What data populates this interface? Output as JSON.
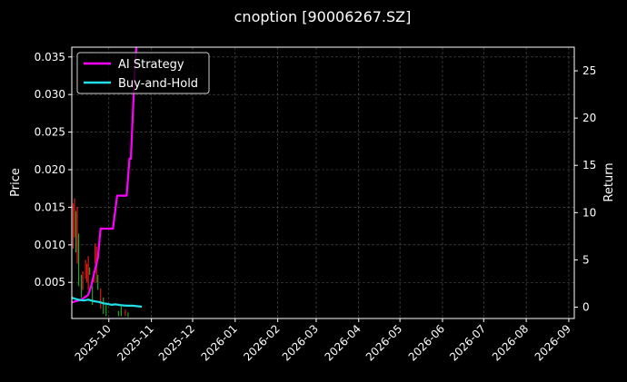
{
  "chart_data": {
    "type": "line",
    "title": "cnoption [90006267.SZ]",
    "ylabel_left": "Price",
    "ylabel_right": "Return",
    "grid": true,
    "legend_position": "top-left",
    "ylim_left": [
      0.0002,
      0.0363
    ],
    "ylim_right": [
      -1.2,
      27.5
    ],
    "xlim": [
      "2025-09-04",
      "2026-09-05"
    ],
    "left_ticks": [
      "0.005",
      "0.010",
      "0.015",
      "0.020",
      "0.025",
      "0.030",
      "0.035"
    ],
    "right_ticks": [
      "0",
      "5",
      "10",
      "15",
      "20",
      "25"
    ],
    "x_ticks": [
      "2025-10",
      "2025-11",
      "2025-12",
      "2026-01",
      "2026-02",
      "2026-03",
      "2026-04",
      "2026-05",
      "2026-06",
      "2026-07",
      "2026-08",
      "2026-09"
    ],
    "series": [
      {
        "name": "AI Strategy",
        "color": "#ff00ff",
        "axis": "right",
        "x": [
          "2025-09-04",
          "2025-09-11",
          "2025-09-16",
          "2025-09-18",
          "2025-09-21",
          "2025-09-23",
          "2025-09-25",
          "2025-09-28",
          "2025-10-04",
          "2025-10-07",
          "2025-10-09",
          "2025-10-14",
          "2025-10-16",
          "2025-10-17",
          "2025-10-20",
          "2025-10-21"
        ],
        "values": [
          0.5,
          0.8,
          1.3,
          2.2,
          4.0,
          5.2,
          8.3,
          8.3,
          8.3,
          11.8,
          11.8,
          11.8,
          15.7,
          15.7,
          25.5,
          27.5
        ]
      },
      {
        "name": "Buy-and-Hold",
        "color": "#22e0e8",
        "axis": "right",
        "x": [
          "2025-09-04",
          "2025-09-07",
          "2025-09-10",
          "2025-09-13",
          "2025-09-16",
          "2025-09-18",
          "2025-09-21",
          "2025-09-24",
          "2025-09-27",
          "2025-09-30",
          "2025-10-03",
          "2025-10-06",
          "2025-10-10",
          "2025-10-14",
          "2025-10-18",
          "2025-10-22",
          "2025-10-25"
        ],
        "values": [
          1.0,
          0.85,
          0.75,
          0.7,
          0.8,
          0.7,
          0.6,
          0.55,
          0.4,
          0.35,
          0.25,
          0.3,
          0.2,
          0.15,
          0.15,
          0.1,
          0.05
        ]
      }
    ],
    "candles": [
      {
        "date": "2025-09-05",
        "low": 0.0095,
        "high": 0.0155,
        "up": false
      },
      {
        "date": "2025-09-06",
        "low": 0.011,
        "high": 0.0162,
        "up": false
      },
      {
        "date": "2025-09-07",
        "low": 0.009,
        "high": 0.0145,
        "up": true
      },
      {
        "date": "2025-09-08",
        "low": 0.0075,
        "high": 0.015,
        "up": false
      },
      {
        "date": "2025-09-09",
        "low": 0.0045,
        "high": 0.0115,
        "up": true
      },
      {
        "date": "2025-09-11",
        "low": 0.003,
        "high": 0.006,
        "up": true
      },
      {
        "date": "2025-09-12",
        "low": 0.004,
        "high": 0.0065,
        "up": false
      },
      {
        "date": "2025-09-14",
        "low": 0.0055,
        "high": 0.008,
        "up": false
      },
      {
        "date": "2025-09-15",
        "low": 0.005,
        "high": 0.0075,
        "up": false
      },
      {
        "date": "2025-09-16",
        "low": 0.004,
        "high": 0.0085,
        "up": false
      },
      {
        "date": "2025-09-17",
        "low": 0.006,
        "high": 0.007,
        "up": true
      },
      {
        "date": "2025-09-19",
        "low": 0.002,
        "high": 0.0045,
        "up": true
      },
      {
        "date": "2025-09-20",
        "low": 0.005,
        "high": 0.0065,
        "up": false
      },
      {
        "date": "2025-09-21",
        "low": 0.0075,
        "high": 0.0102,
        "up": false
      },
      {
        "date": "2025-09-22",
        "low": 0.005,
        "high": 0.0098,
        "up": false
      },
      {
        "date": "2025-09-23",
        "low": 0.004,
        "high": 0.006,
        "up": true
      },
      {
        "date": "2025-09-25",
        "low": 0.0015,
        "high": 0.0042,
        "up": false
      },
      {
        "date": "2025-09-27",
        "low": 0.0008,
        "high": 0.003,
        "up": true
      },
      {
        "date": "2025-09-29",
        "low": 0.0005,
        "high": 0.002,
        "up": true
      },
      {
        "date": "2025-10-08",
        "low": 0.0005,
        "high": 0.0012,
        "up": true
      },
      {
        "date": "2025-10-10",
        "low": 0.0005,
        "high": 0.0018,
        "up": true
      },
      {
        "date": "2025-10-13",
        "low": 0.0005,
        "high": 0.0014,
        "up": false
      },
      {
        "date": "2025-10-15",
        "low": 0.0004,
        "high": 0.001,
        "up": true
      }
    ]
  }
}
